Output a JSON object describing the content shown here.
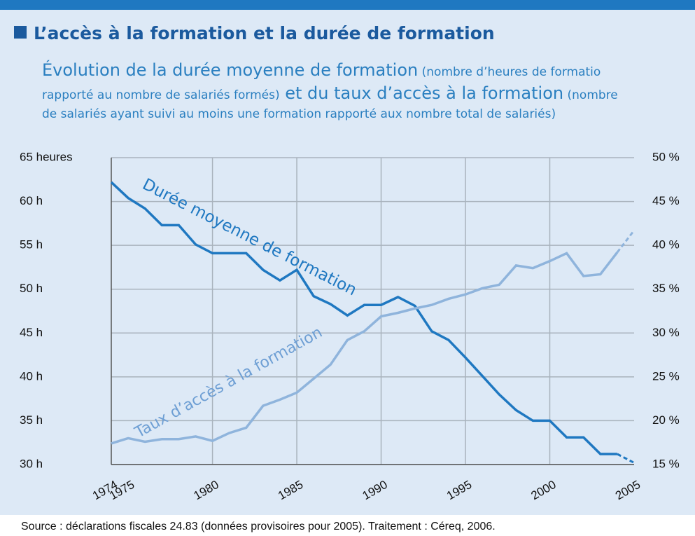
{
  "chart_data": {
    "type": "line",
    "title": "L’accès à la formation et la durée de formation",
    "subtitle": [
      [
        "Évolution de la durée moyenne de formation",
        " (nombre d’heures de formatio"
      ],
      [
        "rapporté au nombre de salariés formés)",
        " et du taux d’accès à la formation",
        " (nombre"
      ],
      [
        "de salariés ayant suivi au moins une formation rapporté aux nombre total de salariés)"
      ]
    ],
    "source": "Source : déclarations fiscales 24.83 (données provisoires pour 2005). Traitement : Céreq, 2006.",
    "x": [
      1974,
      1975,
      1976,
      1977,
      1978,
      1979,
      1980,
      1981,
      1982,
      1983,
      1984,
      1985,
      1986,
      1987,
      1988,
      1989,
      1990,
      1991,
      1992,
      1993,
      1994,
      1995,
      1996,
      1997,
      1998,
      1999,
      2000,
      2001,
      2002,
      2003,
      2004,
      2005
    ],
    "xlim": [
      1974,
      2005
    ],
    "xticks": [
      1974,
      1975,
      1980,
      1985,
      1990,
      1995,
      2000,
      2005
    ],
    "ylim": [
      30,
      65
    ],
    "yticks": [
      {
        "value": 30,
        "label": "30 h"
      },
      {
        "value": 35,
        "label": "35 h"
      },
      {
        "value": 40,
        "label": "40 h"
      },
      {
        "value": 45,
        "label": "45 h"
      },
      {
        "value": 50,
        "label": "50 h"
      },
      {
        "value": 55,
        "label": "55 h"
      },
      {
        "value": 60,
        "label": "60 h"
      },
      {
        "value": 65,
        "label": "65  heures"
      }
    ],
    "y2lim": [
      15,
      50
    ],
    "y2ticks": [
      {
        "value": 15,
        "label": "15 %"
      },
      {
        "value": 20,
        "label": "20 %"
      },
      {
        "value": 25,
        "label": "25 %"
      },
      {
        "value": 30,
        "label": "30 %"
      },
      {
        "value": 35,
        "label": "35 %"
      },
      {
        "value": 40,
        "label": "40 %"
      },
      {
        "value": 45,
        "label": "45 %"
      },
      {
        "value": 50,
        "label": "50 %"
      }
    ],
    "grid": true,
    "dash_last": true,
    "series": [
      {
        "name": "Durée moyenne de formation",
        "color": "#1f78c1",
        "values": [
          62.2,
          60.4,
          59.2,
          57.3,
          57.3,
          55.1,
          54.1,
          54.1,
          54.1,
          52.2,
          51.0,
          52.2,
          49.2,
          48.3,
          47.0,
          48.2,
          48.2,
          49.1,
          48.1,
          45.2,
          44.2,
          42.2,
          40.1,
          38.0,
          36.2,
          35.0,
          35.0,
          33.1,
          33.1,
          31.2,
          31.2,
          30.2
        ]
      },
      {
        "name": "Taux d’accès à la formation",
        "color": "#8fb4dc",
        "axis": "y2",
        "values": [
          17.4,
          18.0,
          17.6,
          17.9,
          17.9,
          18.2,
          17.7,
          18.6,
          19.2,
          21.7,
          22.4,
          23.2,
          24.8,
          26.4,
          29.2,
          30.2,
          31.9,
          32.3,
          32.8,
          33.2,
          33.9,
          34.4,
          35.1,
          35.5,
          37.7,
          37.4,
          38.2,
          39.1,
          36.5,
          36.7,
          39.2,
          41.7
        ]
      }
    ]
  }
}
